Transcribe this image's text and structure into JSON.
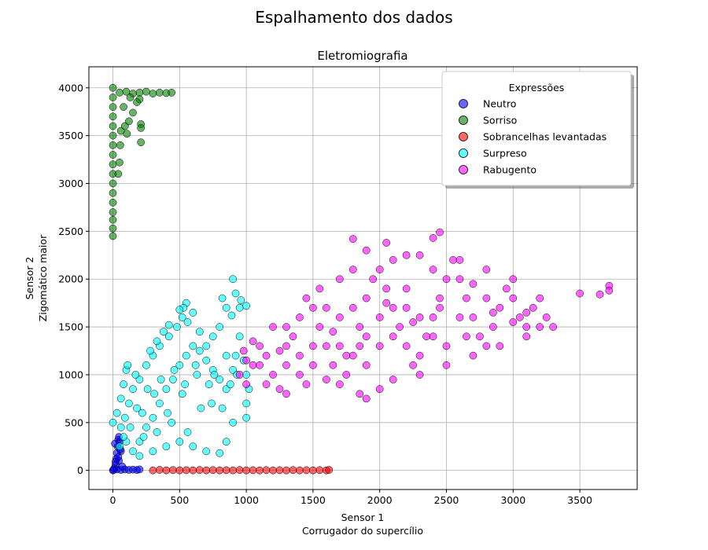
{
  "page": {
    "suptitle": "Espalhamento dos dados"
  },
  "chart_data": {
    "type": "scatter",
    "title": "Eletromiografia",
    "xlabel": [
      "Sensor 1",
      "Corrugador do supercílio"
    ],
    "ylabel": [
      "Sensor 2",
      "Zigomático maior"
    ],
    "xlim": [
      -180,
      3930
    ],
    "ylim": [
      -200,
      4220
    ],
    "xticks": [
      0,
      500,
      1000,
      1500,
      2000,
      2500,
      3000,
      3500
    ],
    "yticks": [
      0,
      500,
      1000,
      1500,
      2000,
      2500,
      3000,
      3500,
      4000
    ],
    "grid": true,
    "legend": {
      "title": "Expressões",
      "placement": "upper-right"
    },
    "series": [
      {
        "name": "Neutro",
        "color": "#0000ff",
        "points": [
          [
            0,
            0
          ],
          [
            10,
            20
          ],
          [
            20,
            60
          ],
          [
            25,
            120
          ],
          [
            30,
            180
          ],
          [
            35,
            250
          ],
          [
            40,
            320
          ],
          [
            50,
            300
          ],
          [
            60,
            200
          ],
          [
            45,
            100
          ],
          [
            5,
            5
          ],
          [
            30,
            10
          ],
          [
            60,
            5
          ],
          [
            90,
            10
          ],
          [
            120,
            5
          ],
          [
            150,
            8
          ],
          [
            180,
            4
          ],
          [
            200,
            10
          ],
          [
            70,
            40
          ],
          [
            15,
            280
          ],
          [
            45,
            350
          ],
          [
            55,
            220
          ],
          [
            20,
            90
          ],
          [
            40,
            140
          ]
        ]
      },
      {
        "name": "Sorriso",
        "color": "#008000",
        "points": [
          [
            0,
            4000
          ],
          [
            0,
            3900
          ],
          [
            0,
            3800
          ],
          [
            0,
            3700
          ],
          [
            0,
            3600
          ],
          [
            0,
            3500
          ],
          [
            0,
            3400
          ],
          [
            0,
            3300
          ],
          [
            0,
            3200
          ],
          [
            0,
            3100
          ],
          [
            0,
            3000
          ],
          [
            0,
            2900
          ],
          [
            0,
            2800
          ],
          [
            0,
            2700
          ],
          [
            0,
            2620
          ],
          [
            0,
            2530
          ],
          [
            0,
            2450
          ],
          [
            50,
            3950
          ],
          [
            100,
            3960
          ],
          [
            150,
            3940
          ],
          [
            200,
            3950
          ],
          [
            250,
            3960
          ],
          [
            300,
            3940
          ],
          [
            350,
            3950
          ],
          [
            400,
            3945
          ],
          [
            440,
            3950
          ],
          [
            40,
            3100
          ],
          [
            50,
            3220
          ],
          [
            55,
            3400
          ],
          [
            60,
            3550
          ],
          [
            90,
            3600
          ],
          [
            105,
            3520
          ],
          [
            120,
            3650
          ],
          [
            150,
            3740
          ],
          [
            200,
            3880
          ],
          [
            210,
            3620
          ],
          [
            210,
            3580
          ],
          [
            210,
            3430
          ],
          [
            80,
            3800
          ],
          [
            130,
            3900
          ],
          [
            180,
            3850
          ]
        ]
      },
      {
        "name": "Sobrancelhas levantadas",
        "color": "#ff0000",
        "points": [
          [
            300,
            0
          ],
          [
            350,
            5
          ],
          [
            400,
            0
          ],
          [
            450,
            3
          ],
          [
            500,
            0
          ],
          [
            550,
            2
          ],
          [
            600,
            0
          ],
          [
            650,
            4
          ],
          [
            700,
            0
          ],
          [
            750,
            3
          ],
          [
            800,
            0
          ],
          [
            850,
            2
          ],
          [
            900,
            0
          ],
          [
            950,
            4
          ],
          [
            1000,
            0
          ],
          [
            1050,
            2
          ],
          [
            1100,
            0
          ],
          [
            1150,
            3
          ],
          [
            1200,
            0
          ],
          [
            1250,
            2
          ],
          [
            1300,
            0
          ],
          [
            1350,
            3
          ],
          [
            1400,
            0
          ],
          [
            1450,
            2
          ],
          [
            1500,
            0
          ],
          [
            1550,
            3
          ],
          [
            1600,
            0
          ],
          [
            1620,
            5
          ]
        ]
      },
      {
        "name": "Surpreso",
        "color": "#00ffff",
        "points": [
          [
            0,
            500
          ],
          [
            30,
            600
          ],
          [
            60,
            750
          ],
          [
            80,
            900
          ],
          [
            100,
            1050
          ],
          [
            60,
            450
          ],
          [
            100,
            300
          ],
          [
            150,
            200
          ],
          [
            200,
            300
          ],
          [
            250,
            450
          ],
          [
            300,
            550
          ],
          [
            350,
            700
          ],
          [
            400,
            850
          ],
          [
            450,
            950
          ],
          [
            500,
            1100
          ],
          [
            550,
            1200
          ],
          [
            600,
            1300
          ],
          [
            650,
            1250
          ],
          [
            700,
            1150
          ],
          [
            750,
            1050
          ],
          [
            800,
            950
          ],
          [
            850,
            850
          ],
          [
            900,
            1050
          ],
          [
            920,
            1200
          ],
          [
            950,
            1400
          ],
          [
            950,
            1700
          ],
          [
            920,
            1850
          ],
          [
            900,
            2000
          ],
          [
            850,
            1700
          ],
          [
            800,
            1500
          ],
          [
            750,
            1400
          ],
          [
            700,
            1300
          ],
          [
            650,
            1450
          ],
          [
            600,
            1650
          ],
          [
            550,
            1750
          ],
          [
            520,
            1600
          ],
          [
            480,
            1500
          ],
          [
            420,
            1400
          ],
          [
            350,
            1300
          ],
          [
            300,
            1200
          ],
          [
            250,
            1100
          ],
          [
            200,
            950
          ],
          [
            150,
            850
          ],
          [
            120,
            700
          ],
          [
            80,
            350
          ],
          [
            200,
            150
          ],
          [
            300,
            200
          ],
          [
            400,
            250
          ],
          [
            500,
            300
          ],
          [
            600,
            250
          ],
          [
            700,
            200
          ],
          [
            800,
            180
          ],
          [
            850,
            300
          ],
          [
            900,
            500
          ],
          [
            1000,
            550
          ],
          [
            1000,
            700
          ],
          [
            1020,
            850
          ],
          [
            1000,
            1000
          ],
          [
            980,
            1150
          ],
          [
            1000,
            1720
          ],
          [
            960,
            1780
          ],
          [
            890,
            1620
          ],
          [
            820,
            1800
          ],
          [
            560,
            1550
          ],
          [
            530,
            1700
          ],
          [
            500,
            1680
          ],
          [
            420,
            1520
          ],
          [
            380,
            1450
          ],
          [
            330,
            1350
          ],
          [
            280,
            1250
          ],
          [
            170,
            1000
          ],
          [
            110,
            1100
          ],
          [
            130,
            450
          ],
          [
            220,
            600
          ],
          [
            310,
            800
          ],
          [
            410,
            600
          ],
          [
            520,
            800
          ],
          [
            630,
            1000
          ],
          [
            740,
            700
          ],
          [
            850,
            1200
          ],
          [
            760,
            1000
          ],
          [
            660,
            650
          ],
          [
            560,
            400
          ],
          [
            460,
            1050
          ],
          [
            360,
            950
          ],
          [
            260,
            850
          ],
          [
            180,
            650
          ],
          [
            90,
            550
          ],
          [
            50,
            250
          ],
          [
            230,
            350
          ],
          [
            330,
            400
          ],
          [
            440,
            500
          ],
          [
            540,
            900
          ],
          [
            620,
            1100
          ],
          [
            720,
            900
          ],
          [
            820,
            650
          ],
          [
            880,
            900
          ],
          [
            930,
            1000
          ]
        ]
      },
      {
        "name": "Rabugento",
        "color": "#ff00ff",
        "points": [
          [
            950,
            1000
          ],
          [
            1000,
            900
          ],
          [
            1050,
            1100
          ],
          [
            1100,
            1300
          ],
          [
            1150,
            1200
          ],
          [
            1200,
            1000
          ],
          [
            1250,
            850
          ],
          [
            1300,
            1100
          ],
          [
            1350,
            1400
          ],
          [
            1400,
            1600
          ],
          [
            1450,
            1800
          ],
          [
            1500,
            1700
          ],
          [
            1550,
            1500
          ],
          [
            1600,
            1300
          ],
          [
            1650,
            1100
          ],
          [
            1700,
            900
          ],
          [
            1750,
            1000
          ],
          [
            1800,
            1200
          ],
          [
            1850,
            1500
          ],
          [
            1900,
            1800
          ],
          [
            1950,
            2000
          ],
          [
            2000,
            2100
          ],
          [
            2050,
            1900
          ],
          [
            2100,
            1700
          ],
          [
            2150,
            1500
          ],
          [
            2200,
            1300
          ],
          [
            2250,
            1100
          ],
          [
            2300,
            1200
          ],
          [
            2350,
            1400
          ],
          [
            2400,
            1600
          ],
          [
            2450,
            1800
          ],
          [
            2500,
            2000
          ],
          [
            2550,
            2200
          ],
          [
            2600,
            2000
          ],
          [
            2650,
            1800
          ],
          [
            2700,
            1600
          ],
          [
            2750,
            1400
          ],
          [
            2800,
            1300
          ],
          [
            2850,
            1500
          ],
          [
            2900,
            1700
          ],
          [
            2950,
            1900
          ],
          [
            3000,
            1800
          ],
          [
            3050,
            1600
          ],
          [
            3100,
            1500
          ],
          [
            3150,
            1700
          ],
          [
            3200,
            1800
          ],
          [
            3250,
            1600
          ],
          [
            3300,
            1500
          ],
          [
            3500,
            1850
          ],
          [
            3650,
            1840
          ],
          [
            3720,
            1930
          ],
          [
            3720,
            1880
          ],
          [
            1800,
            2420
          ],
          [
            1900,
            2300
          ],
          [
            2050,
            2380
          ],
          [
            2400,
            2430
          ],
          [
            2450,
            2490
          ],
          [
            2300,
            2250
          ],
          [
            2200,
            2250
          ],
          [
            1850,
            800
          ],
          [
            1900,
            750
          ],
          [
            2000,
            850
          ],
          [
            2100,
            950
          ],
          [
            1150,
            900
          ],
          [
            1300,
            800
          ],
          [
            1450,
            900
          ],
          [
            1600,
            950
          ],
          [
            1750,
            1200
          ],
          [
            1400,
            1200
          ],
          [
            1550,
            1900
          ],
          [
            1700,
            2000
          ],
          [
            1800,
            2100
          ],
          [
            2100,
            2200
          ],
          [
            2300,
            1000
          ],
          [
            2500,
            1100
          ],
          [
            2700,
            1200
          ],
          [
            2900,
            1300
          ],
          [
            3100,
            1400
          ],
          [
            3200,
            1500
          ],
          [
            3000,
            2000
          ],
          [
            2800,
            2100
          ],
          [
            2600,
            2200
          ],
          [
            2400,
            2100
          ],
          [
            2200,
            1900
          ],
          [
            2000,
            1600
          ],
          [
            1900,
            1400
          ],
          [
            1700,
            1600
          ],
          [
            1500,
            1300
          ],
          [
            1300,
            1500
          ],
          [
            1200,
            1500
          ],
          [
            1100,
            1100
          ],
          [
            1000,
            1150
          ],
          [
            980,
            1250
          ],
          [
            1050,
            1350
          ],
          [
            1400,
            1000
          ],
          [
            1600,
            1700
          ],
          [
            1800,
            1700
          ],
          [
            2000,
            1300
          ],
          [
            2200,
            1700
          ],
          [
            2400,
            1400
          ],
          [
            2600,
            1600
          ],
          [
            2800,
            1800
          ],
          [
            3000,
            1550
          ],
          [
            3100,
            1650
          ],
          [
            2700,
            1950
          ],
          [
            2500,
            1300
          ],
          [
            2300,
            1600
          ],
          [
            2100,
            1400
          ],
          [
            1900,
            1100
          ],
          [
            1700,
            1300
          ],
          [
            1500,
            1100
          ],
          [
            1300,
            1300
          ],
          [
            1250,
            1250
          ],
          [
            1650,
            1450
          ],
          [
            1850,
            1300
          ],
          [
            2050,
            1750
          ],
          [
            2250,
            1550
          ],
          [
            2450,
            1700
          ],
          [
            2650,
            1400
          ],
          [
            2850,
            1650
          ]
        ]
      }
    ]
  }
}
